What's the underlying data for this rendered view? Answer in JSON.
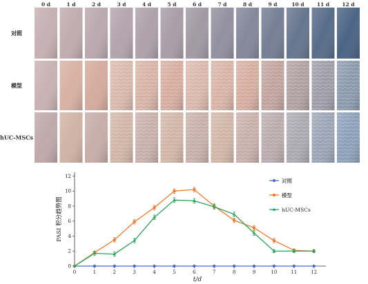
{
  "photo_panel": {
    "day_labels": [
      "0 d",
      "1 d",
      "2 d",
      "3 d",
      "4 d",
      "5 d",
      "6 d",
      "7 d",
      "8 d",
      "9 d",
      "10 d",
      "11 d",
      "12 d"
    ],
    "row_labels": [
      "对照",
      "模型",
      "hUC-MSCs"
    ]
  },
  "chart_data": {
    "type": "line",
    "xlabel": "t/d",
    "ylabel": "PASI 积分趋势图",
    "x": [
      0,
      1,
      2,
      3,
      4,
      5,
      6,
      7,
      8,
      9,
      10,
      11,
      12
    ],
    "xlim": [
      0,
      12.6
    ],
    "ylim": [
      0,
      12.5
    ],
    "y_ticks": [
      0,
      2,
      4,
      6,
      8,
      10,
      12
    ],
    "x_ticks": [
      0,
      1,
      2,
      3,
      4,
      5,
      6,
      7,
      8,
      9,
      10,
      11,
      12
    ],
    "legend_position": "top-right",
    "series": [
      {
        "name": "对照",
        "color": "#4472c4",
        "marker": "circle",
        "values": [
          0,
          0,
          0,
          0,
          0,
          0,
          0,
          0,
          0,
          0,
          0,
          0,
          0
        ],
        "errors": [
          0,
          0,
          0,
          0,
          0,
          0,
          0,
          0,
          0,
          0,
          0,
          0,
          0
        ]
      },
      {
        "name": "模型",
        "color": "#ed7d31",
        "marker": "circle",
        "values": [
          0,
          1.8,
          3.5,
          5.9,
          7.8,
          10.0,
          10.2,
          8.0,
          6.1,
          5.1,
          3.4,
          2.1,
          2.0
        ],
        "errors": [
          0,
          0.2,
          0.3,
          0.3,
          0.3,
          0.3,
          0.3,
          0.3,
          0.3,
          0.3,
          0.3,
          0.2,
          0.2
        ]
      },
      {
        "name": "hUC-MSCs",
        "color": "#2aa15a",
        "marker": "triangle",
        "values": [
          0,
          1.7,
          1.6,
          3.4,
          6.5,
          8.8,
          8.7,
          7.9,
          6.9,
          4.4,
          2.0,
          2.0,
          2.0
        ],
        "errors": [
          0,
          0.3,
          0.3,
          0.3,
          0.3,
          0.3,
          0.3,
          0.3,
          0.3,
          0.3,
          0.2,
          0.2,
          0.2
        ]
      }
    ]
  },
  "colors": {
    "skin_control_early": "#c6b0b3",
    "skin_control_late": "#4c6585",
    "skin_model": "#d2a596",
    "skin_treated": "#c7aea8",
    "axis": "#333333"
  }
}
